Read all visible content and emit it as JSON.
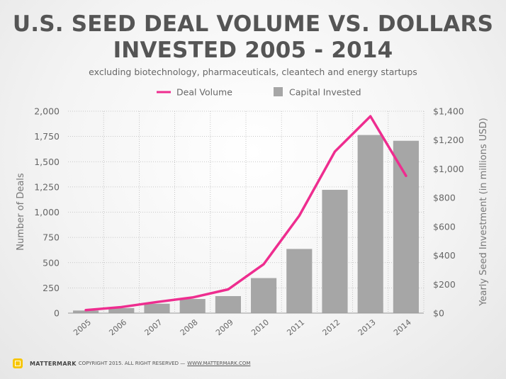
{
  "title_line1": "U.S. SEED DEAL VOLUME VS. DOLLARS",
  "title_line2": "INVESTED 2005 - 2014",
  "subtitle": "excluding biotechnology, pharmaceuticals, cleantech and energy startups",
  "footer": {
    "brand": "MATTERMARK",
    "copyright": "COPYRIGHT 2015. ALL RIGHT RESERVED —",
    "url": "WWW.MATTERMARK.COM"
  },
  "colors": {
    "line": "#ee2d8f",
    "bar": "#a6a6a6",
    "grid": "#b9b9b9",
    "text": "#666666"
  },
  "chart_data": {
    "type": "bar+line",
    "categories": [
      "2005",
      "2006",
      "2007",
      "2008",
      "2009",
      "2010",
      "2011",
      "2012",
      "2013",
      "2014"
    ],
    "series": [
      {
        "name": "Deal Volume",
        "type": "line",
        "axis": "left",
        "values": [
          30,
          60,
          110,
          155,
          235,
          485,
          965,
          1600,
          1950,
          1360
        ]
      },
      {
        "name": "Capital Invested",
        "type": "bar",
        "axis": "right",
        "values": [
          18,
          35,
          65,
          98,
          118,
          243,
          445,
          855,
          1235,
          1195
        ]
      }
    ],
    "ylabel_left": "Number of Deals",
    "ylabel_right": "Yearly Seed Investment (in millions USD)",
    "ylim_left": [
      0,
      2000
    ],
    "ylim_right": [
      0,
      1400
    ],
    "yticks_left": [
      "0",
      "250",
      "500",
      "750",
      "1,000",
      "1,250",
      "1,500",
      "1,750",
      "2,000"
    ],
    "yticks_right": [
      "$0",
      "$200",
      "$400",
      "$600",
      "$800",
      "$1,000",
      "$1,200",
      "$1,400"
    ],
    "legend_position": "top",
    "grid": "dotted"
  }
}
